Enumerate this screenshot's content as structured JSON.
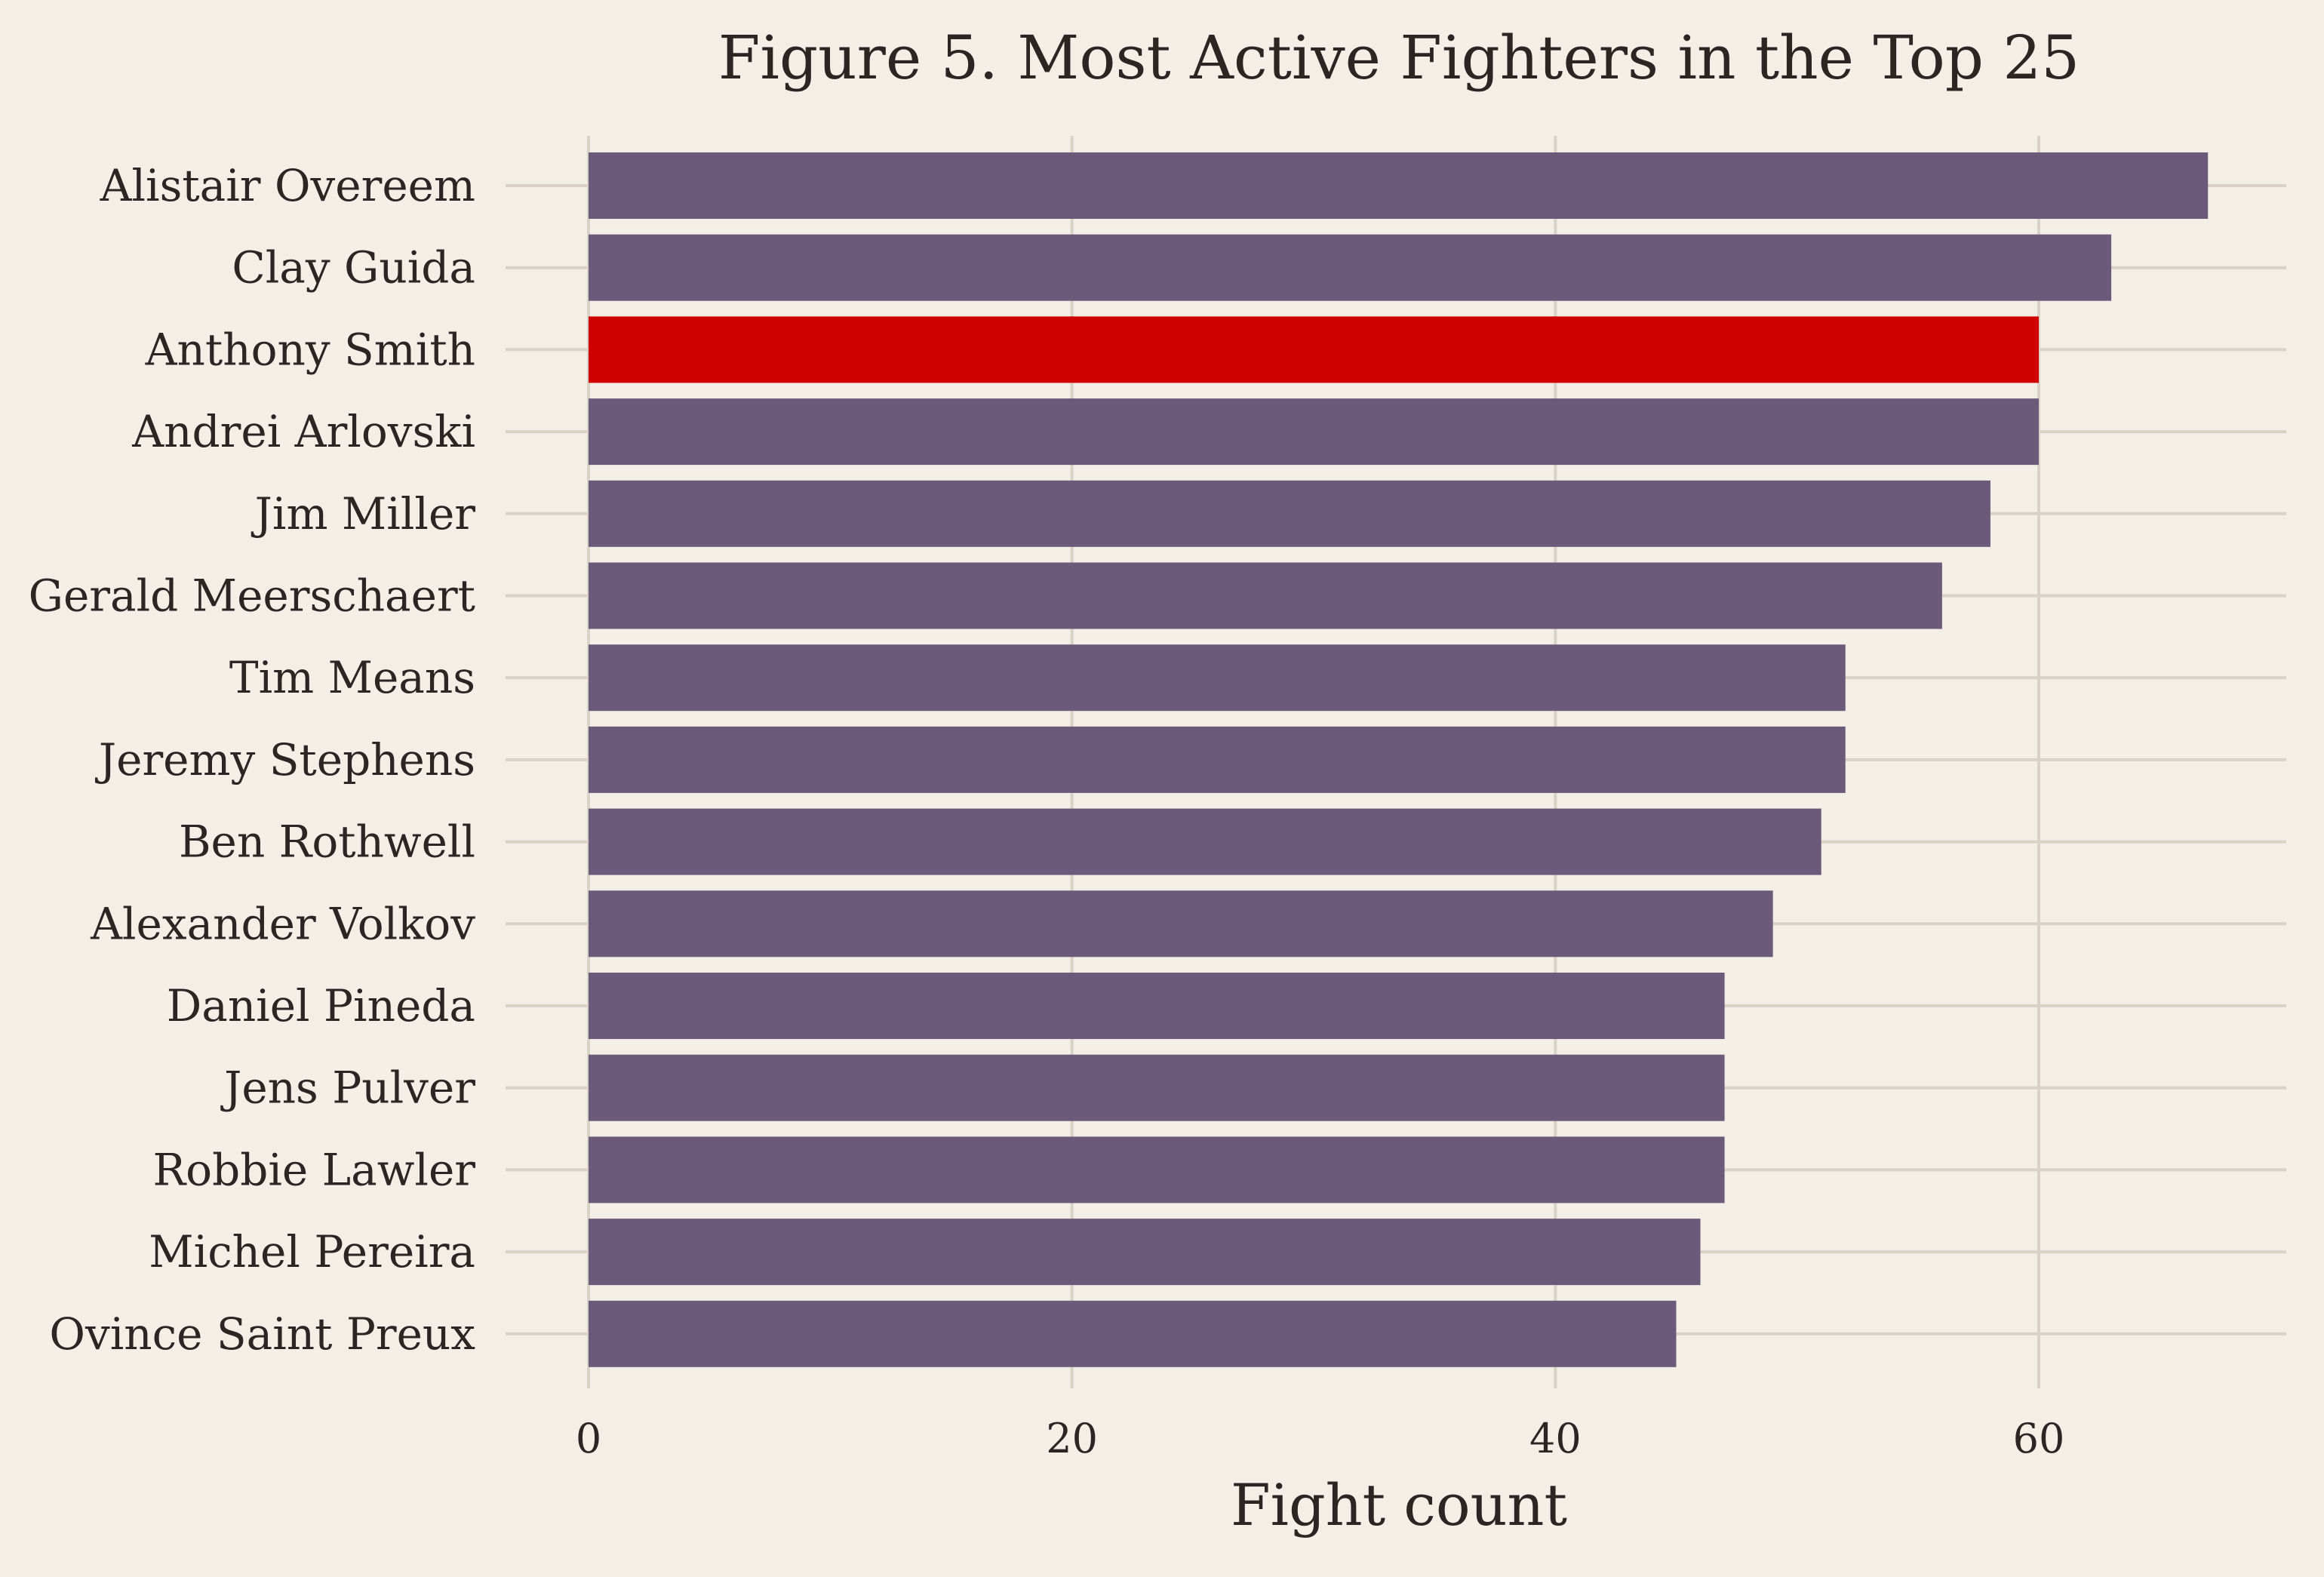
{
  "chart_data": {
    "type": "bar",
    "orientation": "horizontal",
    "title": "Figure 5. Most Active Fighters in the Top 25",
    "xlabel": "Fight count",
    "ylabel": "",
    "xlim": [
      0,
      70
    ],
    "xticks": [
      0,
      20,
      40,
      60
    ],
    "grid": true,
    "categories": [
      "Alistair Overeem",
      "Clay Guida",
      "Anthony Smith",
      "Andrei Arlovski",
      "Jim Miller",
      "Gerald Meerschaert",
      "Tim Means",
      "Jeremy Stephens",
      "Ben Rothwell",
      "Alexander Volkov",
      "Daniel Pineda",
      "Jens Pulver",
      "Robbie Lawler",
      "Michel Pereira",
      "Ovince Saint Preux"
    ],
    "values": [
      67,
      63,
      60,
      60,
      58,
      56,
      52,
      52,
      51,
      49,
      47,
      47,
      47,
      46,
      45
    ],
    "highlighted_category": "Anthony Smith",
    "colors": {
      "bar": "#6c5a7b",
      "highlight": "#d10000",
      "grid": "#d8d3c6",
      "background": "#f3efe7",
      "text": "#2b2622"
    }
  }
}
